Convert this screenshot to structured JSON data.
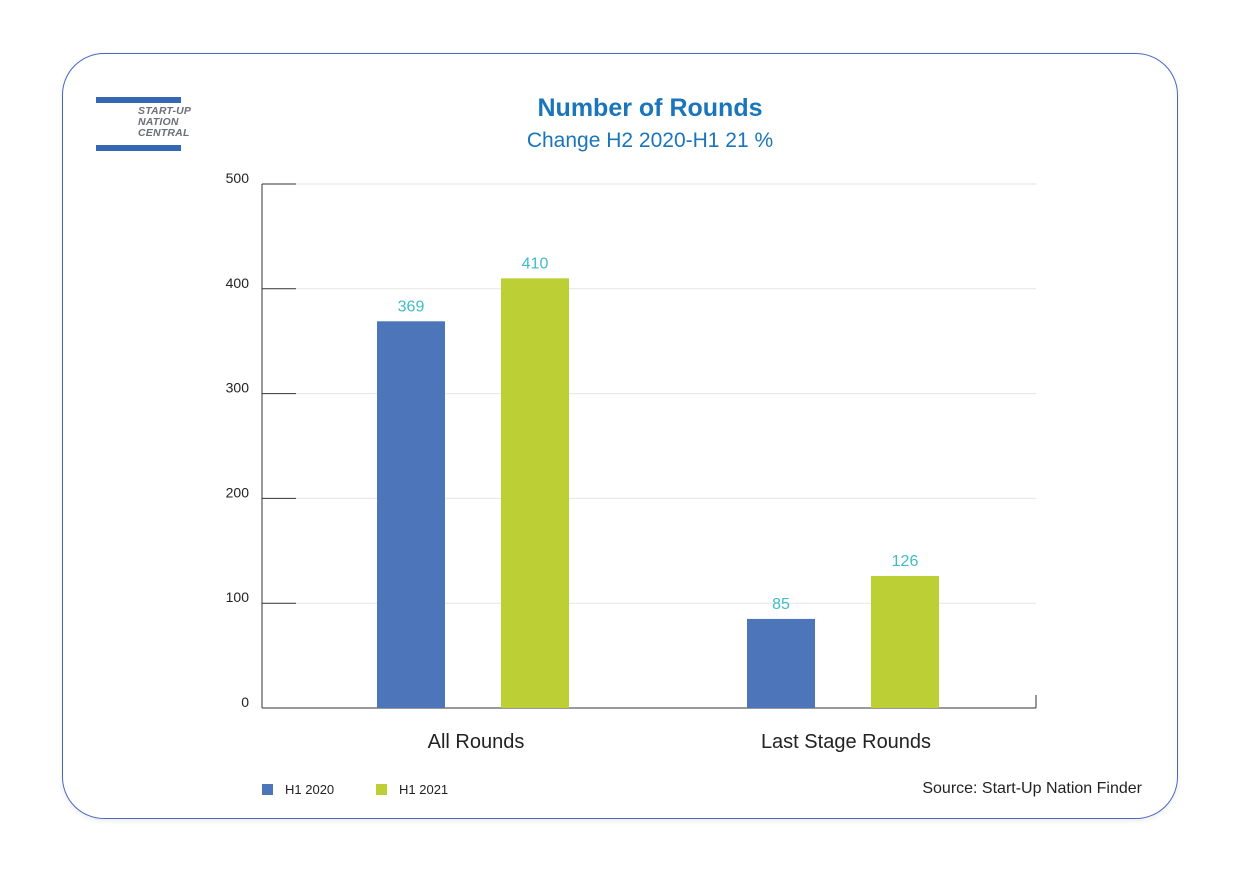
{
  "logo": {
    "line1": "START-UP",
    "line2": "NATION",
    "line3": "CENTRAL"
  },
  "title": "Number of Rounds",
  "subtitle": "Change H2 2020-H1 21 %",
  "source": "Source: Start-Up Nation Finder",
  "colors": {
    "accent": "#1a75bb",
    "series1": "#4c76b9",
    "series2": "#bcd036",
    "label": "#3fbcc8",
    "border": "#4a66c4"
  },
  "chart_data": {
    "type": "bar",
    "title": "Number of Rounds",
    "subtitle": "Change H2 2020-H1 21 %",
    "categories": [
      "All Rounds",
      "Last Stage Rounds"
    ],
    "series": [
      {
        "name": "H1 2020",
        "values": [
          369,
          85
        ]
      },
      {
        "name": "H1 2021",
        "values": [
          410,
          126
        ]
      }
    ],
    "ylim": [
      0,
      500
    ],
    "yticks": [
      0,
      100,
      200,
      300,
      400,
      500
    ],
    "grid": true,
    "legend": "bottom-left"
  }
}
